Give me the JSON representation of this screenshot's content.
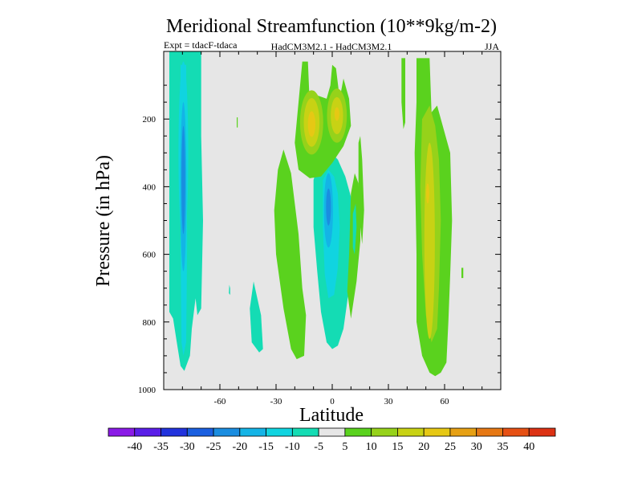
{
  "chart_data": {
    "type": "heatmap",
    "title": "Meridional Streamfunction (10**9kg/m-2)",
    "experiment_label": "Expt = tdacF-tdaca",
    "model_label": "HadCM3M2.1 - HadCM3M2.1",
    "season_label": "JJA",
    "xlabel": "Latitude",
    "ylabel": "Pressure (in hPa)",
    "xlim": [
      -90,
      90
    ],
    "ylim": [
      1000,
      0
    ],
    "x_ticks": [
      -60,
      -30,
      0,
      30,
      60
    ],
    "x_tick_labels": [
      "-60",
      "-30",
      "0",
      "30",
      "60"
    ],
    "y_ticks": [
      200,
      400,
      600,
      800,
      1000
    ],
    "y_tick_labels": [
      "200",
      "400",
      "600",
      "800",
      "1000"
    ],
    "background_color": "#e6e6e6",
    "colorbar": {
      "levels": [
        -40,
        -35,
        -30,
        -25,
        -20,
        -15,
        -10,
        -5,
        5,
        10,
        15,
        20,
        25,
        30,
        35,
        40
      ],
      "labels": [
        "-40",
        "-35",
        "-30",
        "-25",
        "-20",
        "-15",
        "-10",
        "-5",
        "5",
        "10",
        "15",
        "20",
        "25",
        "30",
        "35",
        "40"
      ],
      "colors": [
        "#8a1ae6",
        "#5a1ee8",
        "#2233dd",
        "#1a5fe0",
        "#1a8de0",
        "#14b4e6",
        "#10d4e0",
        "#14dcb4",
        "#e6e6e6",
        "#5ad21e",
        "#96d21a",
        "#c8d214",
        "#e6c814",
        "#e6a014",
        "#e67814",
        "#e65014",
        "#dc3214"
      ]
    },
    "features": [
      {
        "name": "southern-negative-cell",
        "lat_range": [
          -87,
          -70
        ],
        "p_range": [
          0,
          950
        ],
        "min_value": -30
      },
      {
        "name": "equatorial-negative-cell",
        "lat_range": [
          -10,
          10
        ],
        "p_range": [
          300,
          900
        ],
        "min_value": -25
      },
      {
        "name": "upper-positive-pair",
        "lat_range": [
          -18,
          8
        ],
        "p_range": [
          0,
          380
        ],
        "max_value": 25
      },
      {
        "name": "northern-positive-cell",
        "lat_range": [
          40,
          65
        ],
        "p_range": [
          60,
          960
        ],
        "max_value": 20
      }
    ]
  }
}
